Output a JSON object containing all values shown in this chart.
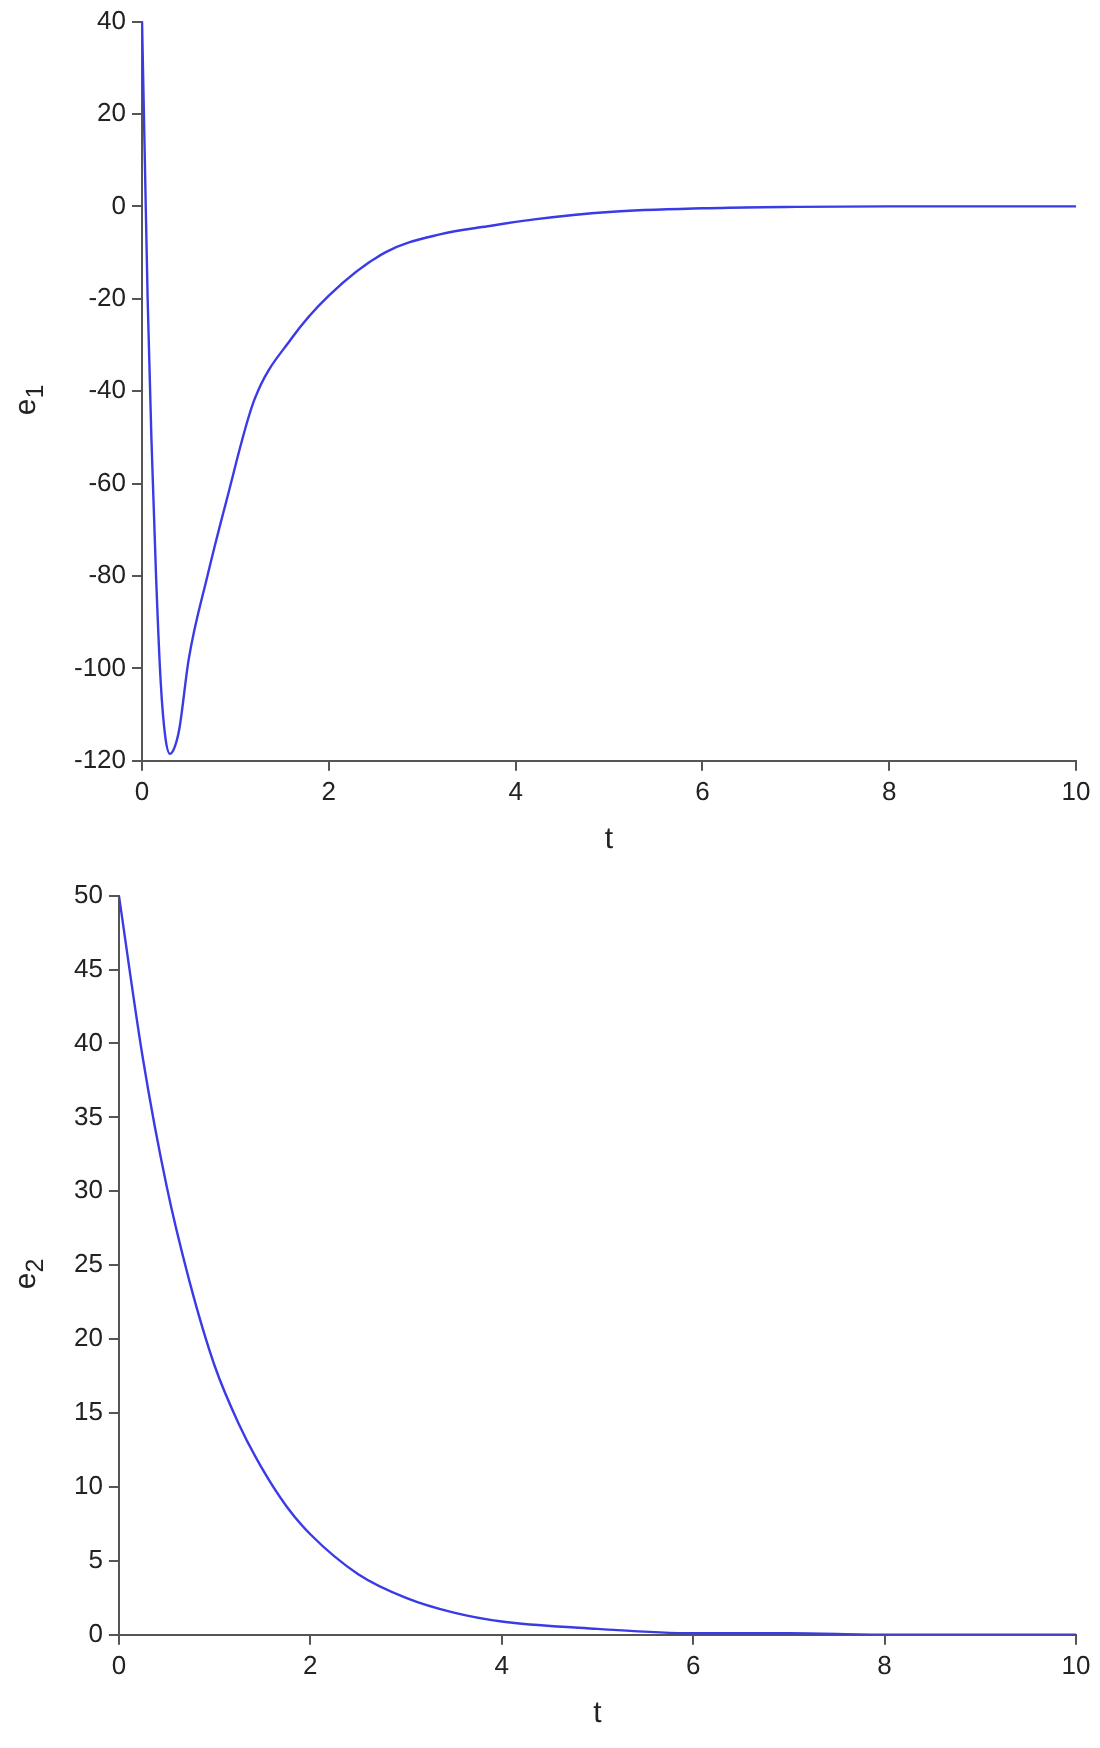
{
  "chart_data": [
    {
      "type": "line",
      "xlabel": "t",
      "ylabel": "e$_{1}$",
      "xlim": [
        0,
        10
      ],
      "xticks": [
        0,
        2,
        4,
        6,
        8,
        10
      ],
      "ylim": [
        -120,
        40
      ],
      "yticks": [
        -120,
        -100,
        -80,
        -60,
        -40,
        -20,
        0,
        20,
        40
      ],
      "grid": false,
      "legend": false,
      "marker": "none",
      "line_style": "solid",
      "series": [
        {
          "color": "#3a3ae6",
          "x": [
            0,
            0.03,
            0.06,
            0.1,
            0.15,
            0.2,
            0.25,
            0.3,
            0.35,
            0.4,
            0.5,
            0.7,
            0.9,
            1.2,
            1.6,
            2,
            2.6,
            3.2,
            3.7,
            4.2,
            5,
            6,
            7,
            8,
            10
          ],
          "values": [
            40,
            10,
            -20,
            -50,
            -80,
            -103,
            -115,
            -118.5,
            -117,
            -113,
            -98,
            -80,
            -64,
            -42,
            -28.6,
            -19.3,
            -10,
            -6,
            -4.3,
            -2.8,
            -1.2,
            -0.4,
            -0.1,
            0,
            0
          ]
        }
      ]
    },
    {
      "type": "line",
      "xlabel": "t",
      "ylabel": "e$_{2}$",
      "xlim": [
        0,
        10
      ],
      "xticks": [
        0,
        2,
        4,
        6,
        8,
        10
      ],
      "ylim": [
        0,
        50
      ],
      "yticks": [
        0,
        5,
        10,
        15,
        20,
        25,
        30,
        35,
        40,
        45,
        50
      ],
      "grid": false,
      "legend": false,
      "marker": "none",
      "line_style": "solid",
      "series": [
        {
          "color": "#3a3ae6",
          "x": [
            0,
            0.25,
            0.5,
            0.75,
            1,
            1.25,
            1.5,
            1.75,
            2,
            2.5,
            3,
            3.5,
            4,
            5,
            6,
            7,
            8,
            10
          ],
          "values": [
            50,
            39,
            30.3,
            23.6,
            18.2,
            14.3,
            11.2,
            8.7,
            6.8,
            4.1,
            2.5,
            1.5,
            0.9,
            0.4,
            0.1,
            0.1,
            0,
            0
          ]
        }
      ]
    }
  ]
}
